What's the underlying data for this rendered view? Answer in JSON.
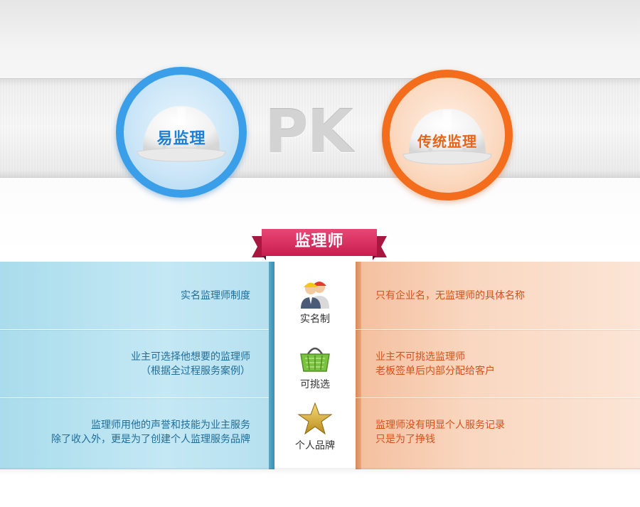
{
  "hero": {
    "left_badge": "易监理",
    "vs_text": "PK",
    "right_badge": "传统监理"
  },
  "ribbon": {
    "label": "监理师"
  },
  "rows": [
    {
      "feature": "实名制",
      "feature_icon": "workers-icon",
      "left": [
        "实名监理师制度"
      ],
      "right": [
        "只有企业名，无监理师的具体名称"
      ]
    },
    {
      "feature": "可挑选",
      "feature_icon": "shopping-basket-icon",
      "left": [
        "业主可选择他想要的监理师",
        "（根据全过程服务案例）"
      ],
      "right": [
        "业主不可挑选监理师",
        "老板签单后内部分配给客户"
      ]
    },
    {
      "feature": "个人品牌",
      "feature_icon": "gold-star-icon",
      "left": [
        "监理师用他的声誉和技能为业主服务",
        "除了收入外，更是为了创建个人监理服务品牌"
      ],
      "right": [
        "监理师没有明显个人服务记录",
        "只是为了挣钱"
      ]
    }
  ],
  "colors": {
    "blue_accent": "#3a9fe8",
    "orange_accent": "#f36d1c",
    "ribbon": "#d6245a"
  }
}
